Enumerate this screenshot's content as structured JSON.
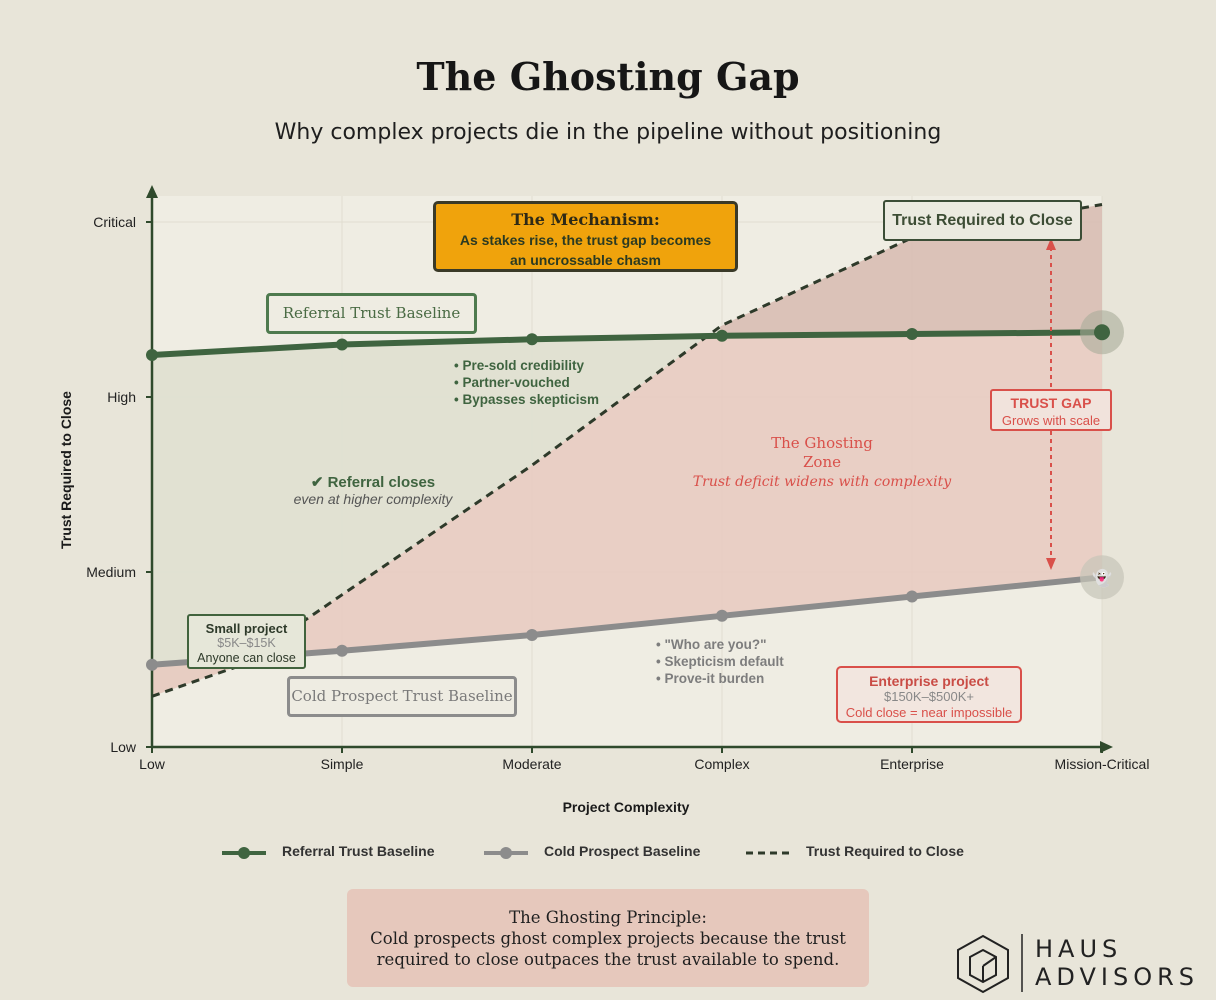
{
  "title": "The Ghosting Gap",
  "subtitle": "Why complex projects die in the pipeline without positioning",
  "chart_data": {
    "type": "line",
    "categories": [
      "Low",
      "Simple",
      "Moderate",
      "Complex",
      "Enterprise",
      "Mission-Critical"
    ],
    "x_index": [
      0,
      1,
      2,
      3,
      4,
      5
    ],
    "ylabel": "Trust Required to Close",
    "xlabel": "Project Complexity",
    "y_ticks": [
      "Low",
      "Medium",
      "High",
      "Critical"
    ],
    "ylim": [
      0,
      3
    ],
    "grid": true,
    "legend_position": "bottom",
    "series": [
      {
        "name": "Referral Trust Baseline",
        "style": "solid",
        "color": "#3f6440",
        "x": [
          0,
          1,
          2,
          3,
          4,
          5
        ],
        "y": [
          2.24,
          2.3,
          2.33,
          2.35,
          2.36,
          2.37
        ]
      },
      {
        "name": "Cold Prospect Baseline",
        "style": "solid",
        "color": "#8c8c8c",
        "x": [
          0,
          1,
          2,
          3,
          4,
          5
        ],
        "y": [
          0.47,
          0.55,
          0.64,
          0.75,
          0.86,
          0.97
        ]
      },
      {
        "name": "Trust Required to Close",
        "style": "dashed",
        "color": "#2e3a2a",
        "x": [
          0,
          0.45,
          1,
          2,
          3,
          4,
          5
        ],
        "y": [
          0.29,
          0.46,
          0.87,
          1.61,
          2.41,
          2.91,
          3.1
        ]
      }
    ],
    "labels": {
      "referral_box": "Referral Trust Baseline",
      "cold_box": "Cold Prospect Trust Baseline",
      "required_box": "Trust Required to Close",
      "mechanism_title": "The Mechanism:",
      "mechanism_body": [
        "As stakes rise, the trust gap becomes",
        "an uncrossable chasm"
      ],
      "referral_bullets": [
        "• Pre-sold credibility",
        "• Partner-vouched",
        "• Bypasses skepticism"
      ],
      "cold_bullets": [
        "• \"Who are you?\"",
        "• Skepticism default",
        "• Prove-it burden"
      ],
      "referral_closes_title": "✔ Referral closes",
      "referral_closes_sub": "even at higher complexity",
      "ghost_zone_title": [
        "The Ghosting",
        "Zone"
      ],
      "ghost_zone_sub": "Trust deficit widens with complexity",
      "trust_gap_title": "TRUST GAP",
      "trust_gap_sub": "Grows with scale",
      "small_project": {
        "title": "Small project",
        "range": "$5K–$15K",
        "note": "Anyone can close"
      },
      "enterprise_project": {
        "title": "Enterprise project",
        "range": "$150K–$500K+",
        "note": "Cold close = near impossible"
      },
      "ghost_emoji": "👻"
    }
  },
  "legend": [
    "Referral Trust Baseline",
    "Cold Prospect Baseline",
    "Trust Required to Close"
  ],
  "principle": {
    "title": "The Ghosting Principle:",
    "line1": "Cold prospects ghost complex projects because the trust",
    "line2": "required to close outpaces the trust available to spend."
  },
  "logo": {
    "line1": "HAUS",
    "line2": "ADVISORS"
  },
  "colors": {
    "referral": "#3f6440",
    "cold": "#8c8c8c",
    "required": "#2e3a2a",
    "gap": "#d9504a",
    "mechanism": "#f0a30c"
  }
}
